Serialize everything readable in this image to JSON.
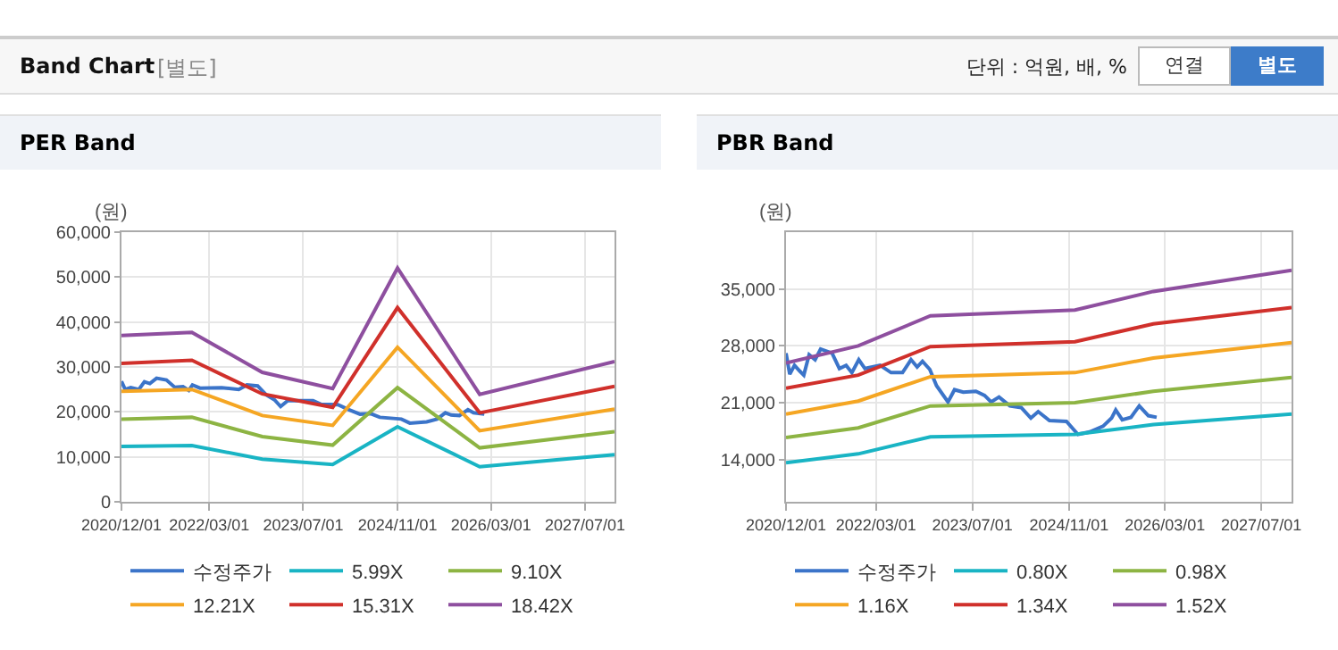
{
  "chart_data": [
    {
      "type": "other",
      "title": "Band Chart",
      "annotations": [
        "[별도]",
        "단위 : 억원, 배, %",
        "연결",
        "별도"
      ]
    },
    {
      "type": "line",
      "title": "PER Band",
      "ylabel": "(원)",
      "grid": true,
      "legend": "bottom",
      "marker": "none",
      "line_style": "solid",
      "xlim": [
        "2020-12-01",
        "2027-12-01"
      ],
      "xticks": [
        {
          "value": "2020-12-01",
          "label": "2020/12/01"
        },
        {
          "value": "2022-03-01",
          "label": "2022/03/01"
        },
        {
          "value": "2023-07-01",
          "label": "2023/07/01"
        },
        {
          "value": "2024-11-01",
          "label": "2024/11/01"
        },
        {
          "value": "2026-03-01",
          "label": "2026/03/01"
        },
        {
          "value": "2027-07-01",
          "label": "2027/07/01"
        }
      ],
      "ylim": [
        0,
        60000
      ],
      "yticks": [
        0,
        {
          "value": 10000,
          "label": "10,000"
        },
        {
          "value": 20000,
          "label": "20,000"
        },
        {
          "value": 30000,
          "label": "30,000"
        },
        {
          "value": 40000,
          "label": "40,000"
        },
        {
          "value": 50000,
          "label": "50,000"
        },
        {
          "value": 60000,
          "label": "60,000"
        }
      ],
      "series": [
        {
          "name": "수정주가",
          "color": "#3b74c9",
          "x": [
            "2020-12-01",
            "2020-12-20",
            "2021-01-18",
            "2021-03-01",
            "2021-03-30",
            "2021-04-27",
            "2021-06-01",
            "2021-07-22",
            "2021-09-03",
            "2021-10-16",
            "2021-11-15",
            "2021-12-04",
            "2022-01-12",
            "2022-05-04",
            "2022-08-01",
            "2022-09-12",
            "2022-11-07",
            "2022-12-21",
            "2023-02-02",
            "2023-03-06",
            "2023-04-12",
            "2023-08-21",
            "2023-10-02",
            "2023-12-28",
            "2024-02-23",
            "2024-04-21",
            "2024-06-16",
            "2024-08-01",
            "2024-11-21",
            "2025-01-04",
            "2025-04-01",
            "2025-05-25",
            "2025-07-07",
            "2025-08-06",
            "2025-09-18",
            "2025-11-01",
            "2025-11-30",
            "2026-01-25"
          ],
          "values": [
            26800,
            25000,
            25400,
            25000,
            26700,
            26300,
            27500,
            27100,
            25500,
            25600,
            24800,
            26000,
            25300,
            25400,
            25000,
            26000,
            25800,
            23800,
            22700,
            21200,
            22500,
            22500,
            21700,
            21600,
            20500,
            19500,
            19600,
            18800,
            18400,
            17500,
            17800,
            18400,
            19800,
            19300,
            19200,
            20500,
            19800,
            19500
          ]
        },
        {
          "name": "5.99X",
          "color": "#19b4c4",
          "x": [
            "2020-12-01",
            "2021-12-01",
            "2022-12-01",
            "2023-12-01",
            "2024-11-01",
            "2026-01-01",
            "2027-12-01"
          ],
          "values": [
            12300,
            12500,
            9500,
            8300,
            16700,
            7800,
            10500
          ]
        },
        {
          "name": "9.10X",
          "color": "#8db443",
          "x": [
            "2020-12-01",
            "2021-12-01",
            "2022-12-01",
            "2023-12-01",
            "2024-11-01",
            "2026-01-01",
            "2027-12-01"
          ],
          "values": [
            18400,
            18800,
            14500,
            12600,
            25400,
            12000,
            15600
          ]
        },
        {
          "name": "12.21X",
          "color": "#f5a623",
          "x": [
            "2020-12-01",
            "2021-12-01",
            "2022-12-01",
            "2023-12-01",
            "2024-11-01",
            "2026-01-01",
            "2027-12-01"
          ],
          "values": [
            24600,
            25000,
            19200,
            17000,
            34400,
            15800,
            20600
          ]
        },
        {
          "name": "15.31X",
          "color": "#d0302b",
          "x": [
            "2020-12-01",
            "2021-12-01",
            "2022-12-01",
            "2023-12-01",
            "2024-11-01",
            "2026-01-01",
            "2027-12-01"
          ],
          "values": [
            30800,
            31500,
            24000,
            21000,
            43200,
            19800,
            25700
          ]
        },
        {
          "name": "18.42X",
          "color": "#8e4f9f",
          "x": [
            "2020-12-01",
            "2021-12-01",
            "2022-12-01",
            "2023-12-01",
            "2024-11-01",
            "2026-01-01",
            "2027-12-01"
          ],
          "values": [
            37000,
            37700,
            28800,
            25200,
            52000,
            23900,
            31200
          ]
        }
      ]
    },
    {
      "type": "line",
      "title": "PBR Band",
      "ylabel": "(원)",
      "grid": true,
      "legend": "bottom",
      "marker": "none",
      "line_style": "solid",
      "xlim": [
        "2020-12-01",
        "2027-12-01"
      ],
      "xticks": [
        {
          "value": "2020-12-01",
          "label": "2020/12/01"
        },
        {
          "value": "2022-03-01",
          "label": "2022/03/01"
        },
        {
          "value": "2023-07-01",
          "label": "2023/07/01"
        },
        {
          "value": "2024-11-01",
          "label": "2024/11/01"
        },
        {
          "value": "2026-03-01",
          "label": "2026/03/01"
        },
        {
          "value": "2027-07-01",
          "label": "2027/07/01"
        }
      ],
      "ylim": [
        8800,
        42000
      ],
      "yticks": [
        {
          "value": 14000,
          "label": "14,000"
        },
        {
          "value": 21000,
          "label": "21,000"
        },
        {
          "value": 28000,
          "label": "28,000"
        },
        {
          "value": 35000,
          "label": "35,000"
        }
      ],
      "series": [
        {
          "name": "수정주가",
          "color": "#3b74c9",
          "x": [
            "2020-12-01",
            "2020-12-20",
            "2021-01-13",
            "2021-02-08",
            "2021-03-01",
            "2021-03-28",
            "2021-04-27",
            "2021-05-25",
            "2021-07-22",
            "2021-08-28",
            "2021-10-01",
            "2021-10-30",
            "2021-12-04",
            "2022-01-04",
            "2022-03-22",
            "2022-05-16",
            "2022-07-13",
            "2022-08-25",
            "2022-09-25",
            "2022-10-22",
            "2022-11-28",
            "2023-01-01",
            "2023-02-28",
            "2023-04-02",
            "2023-05-16",
            "2023-07-19",
            "2023-09-01",
            "2023-10-04",
            "2023-11-13",
            "2024-01-07",
            "2024-03-04",
            "2024-04-22",
            "2024-05-29",
            "2024-07-25",
            "2024-10-19",
            "2024-12-16",
            "2025-02-13",
            "2025-04-22",
            "2025-06-04",
            "2025-06-25",
            "2025-07-28",
            "2025-09-10",
            "2025-10-22",
            "2025-12-07",
            "2026-01-18"
          ],
          "values": [
            27100,
            24500,
            25600,
            24900,
            24400,
            26900,
            26300,
            27600,
            27100,
            25200,
            25600,
            24700,
            26300,
            25200,
            25600,
            24700,
            24700,
            26300,
            25400,
            26100,
            25100,
            23100,
            21100,
            22600,
            22300,
            22400,
            21900,
            21100,
            21700,
            20600,
            20400,
            19100,
            19900,
            18800,
            18700,
            17100,
            17400,
            18100,
            19100,
            20100,
            18900,
            19200,
            20600,
            19400,
            19200
          ]
        },
        {
          "name": "0.80X",
          "color": "#19b4c4",
          "x": [
            "2020-12-01",
            "2021-12-01",
            "2022-12-01",
            "2024-12-01",
            "2026-01-01",
            "2027-12-01"
          ],
          "values": [
            13600,
            14700,
            16800,
            17100,
            18300,
            19600
          ]
        },
        {
          "name": "0.98X",
          "color": "#8db443",
          "x": [
            "2020-12-01",
            "2021-12-01",
            "2022-12-01",
            "2024-12-01",
            "2026-01-01",
            "2027-12-01"
          ],
          "values": [
            16700,
            17900,
            20600,
            21000,
            22400,
            24100
          ]
        },
        {
          "name": "1.16X",
          "color": "#f5a623",
          "x": [
            "2020-12-01",
            "2021-12-01",
            "2022-12-01",
            "2024-12-01",
            "2026-01-01",
            "2027-12-01"
          ],
          "values": [
            19600,
            21200,
            24200,
            24700,
            26500,
            28400
          ]
        },
        {
          "name": "1.34X",
          "color": "#d0302b",
          "x": [
            "2020-12-01",
            "2021-12-01",
            "2022-12-01",
            "2024-12-01",
            "2026-01-01",
            "2027-12-01"
          ],
          "values": [
            22800,
            24400,
            27900,
            28500,
            30700,
            32700
          ]
        },
        {
          "name": "1.52X",
          "color": "#8e4f9f",
          "x": [
            "2020-12-01",
            "2021-12-01",
            "2022-12-01",
            "2024-12-01",
            "2026-01-01",
            "2027-12-01"
          ],
          "values": [
            25900,
            28000,
            31700,
            32400,
            34700,
            37300
          ]
        }
      ]
    }
  ]
}
